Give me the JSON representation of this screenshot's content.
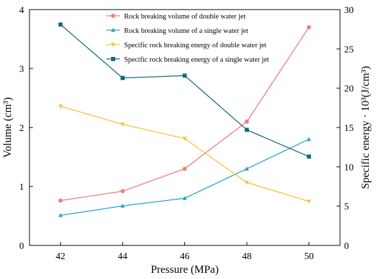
{
  "chart_data": {
    "type": "line",
    "title": "",
    "xlabel": "Pressure (MPa)",
    "ylabel_left": "Volume (cm³)",
    "ylabel_right": "Specific energy · 10³(J/cm³)",
    "x": [
      42,
      44,
      46,
      48,
      50
    ],
    "xlim": [
      41,
      51
    ],
    "ylim_left": [
      0,
      4
    ],
    "ylim_right": [
      0,
      30
    ],
    "x_ticks": [
      42,
      44,
      46,
      48,
      50
    ],
    "y_ticks_left": [
      0,
      1,
      2,
      3,
      4
    ],
    "y_ticks_right": [
      0,
      5,
      10,
      15,
      20,
      25,
      30
    ],
    "grid": false,
    "legend_position": "top-right",
    "series": [
      {
        "name": "Rock breaking volume of double water jet",
        "axis": "left",
        "color": "#f07b73",
        "marker": "circle",
        "values": [
          0.76,
          0.92,
          1.3,
          2.1,
          3.7
        ]
      },
      {
        "name": "Rock breaking volume of a single water jet",
        "axis": "left",
        "color": "#1ea3c2",
        "marker": "triangle-up",
        "values": [
          0.51,
          0.67,
          0.8,
          1.3,
          1.8
        ]
      },
      {
        "name": "Specific rock breaking energy of double water jet",
        "axis": "right",
        "color": "#f5c03c",
        "marker": "triangle-down",
        "values": [
          17.7,
          15.4,
          13.6,
          8.0,
          5.6
        ]
      },
      {
        "name": "Specific rock breaking energy of a single water jet",
        "axis": "right",
        "color": "#0e6b78",
        "marker": "square",
        "values": [
          28.1,
          21.3,
          21.6,
          14.7,
          11.3
        ]
      }
    ]
  }
}
